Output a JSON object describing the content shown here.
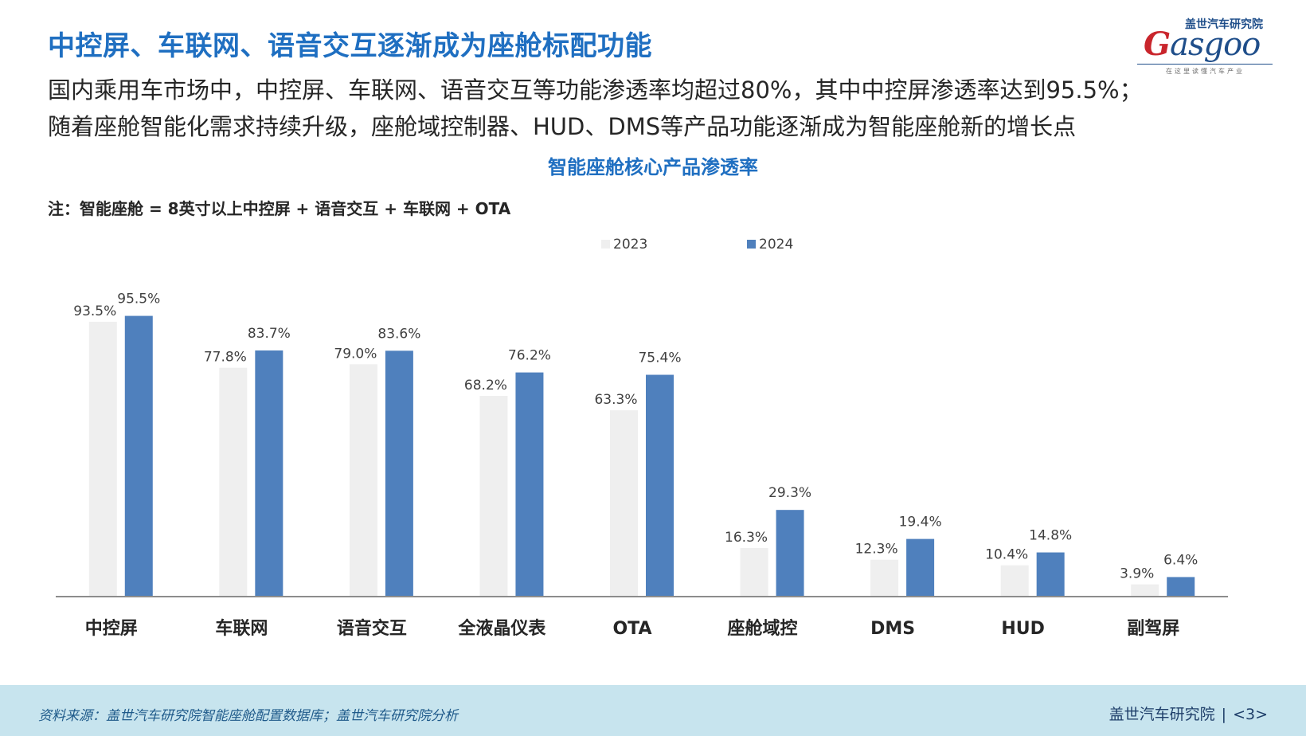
{
  "header": {
    "title": "中控屏、车联网、语音交互逐渐成为座舱标配功能",
    "subtitle_line1": "国内乘用车市场中，中控屏、车联网、语音交互等功能渗透率均超过80%，其中中控屏渗透率达到95.5%；",
    "subtitle_line2": "随着座舱智能化需求持续升级，座舱域控制器、HUD、DMS等产品功能逐渐成为智能座舱新的增长点"
  },
  "logo": {
    "cn": "盖世汽车研究院",
    "word_initial": "G",
    "word_rest": "asgoo",
    "slogan": "在这里读懂汽车产业"
  },
  "colors": {
    "title": "#1f6fc1",
    "series_2023": "#efefef",
    "series_2024": "#4f80bd",
    "footer_bg": "#c7e4ee"
  },
  "chart_data": {
    "type": "bar",
    "title": "智能座舱核心产品渗透率",
    "note": "注：智能座舱 = 8英寸以上中控屏 + 语音交互 + 车联网 + OTA",
    "categories": [
      "中控屏",
      "车联网",
      "语音交互",
      "全液晶仪表",
      "OTA",
      "座舱域控",
      "DMS",
      "HUD",
      "副驾屏"
    ],
    "series": [
      {
        "name": "2023",
        "values": [
          93.5,
          77.8,
          79.0,
          68.2,
          63.3,
          16.3,
          12.3,
          10.4,
          3.9
        ]
      },
      {
        "name": "2024",
        "values": [
          95.5,
          83.7,
          83.6,
          76.2,
          75.4,
          29.3,
          19.4,
          14.8,
          6.4
        ]
      }
    ],
    "labels": {
      "2023": [
        "93.5%",
        "77.8%",
        "79.0%",
        "68.2%",
        "63.3%",
        "16.3%",
        "12.3%",
        "10.4%",
        "3.9%"
      ],
      "2024": [
        "95.5%",
        "83.7%",
        "83.6%",
        "76.2%",
        "75.4%",
        "29.3%",
        "19.4%",
        "14.8%",
        "6.4%"
      ]
    },
    "ylim": [
      0,
      100
    ],
    "grid": false,
    "legend": "top-center"
  },
  "footer": {
    "source": "资料来源：盖世汽车研究院智能座舱配置数据库；盖世汽车研究院分析",
    "brand": "盖世汽车研究院",
    "separator": "|",
    "page": "<3>"
  }
}
